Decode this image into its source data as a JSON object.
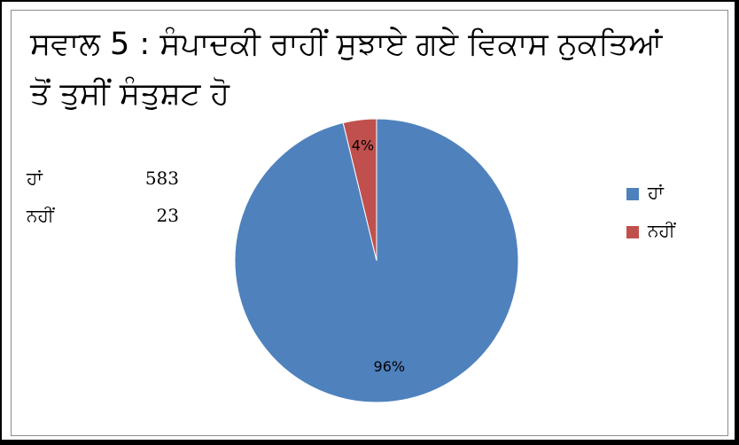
{
  "title": {
    "line1": "ਸਵਾਲ 5 : ਸੰਪਾਦਕੀ ਰਾਹੀਂ ਸੁਝਾਏ ਗਏ ਵਿਕਾਸ ਨੁਕਤਿਆਂ",
    "line2": "ਤੋਂ ਤੁਸੀਂ ਸੰਤੁਸ਼ਟ ਹੋ"
  },
  "table": [
    {
      "label": "ਹਾਂ",
      "value": "583"
    },
    {
      "label": "ਨਹੀਂ",
      "value": "23"
    }
  ],
  "chart_data": {
    "type": "pie",
    "title": "ਸਵਾਲ 5 : ਸੰਪਾਦਕੀ ਰਾਹੀਂ ਸੁਝਾਏ ਗਏ ਵਿਕਾਸ ਨੁਕਤਿਆਂ ਤੋਂ ਤੁਸੀਂ ਸੰਤੁਸ਼ਟ ਹੋ",
    "categories": [
      "ਹਾਂ",
      "ਨਹੀਂ"
    ],
    "values": [
      583,
      23
    ],
    "data_labels": [
      "96%",
      "4%"
    ],
    "colors": [
      "#4f81bd",
      "#c0504d"
    ],
    "legend_position": "right"
  }
}
